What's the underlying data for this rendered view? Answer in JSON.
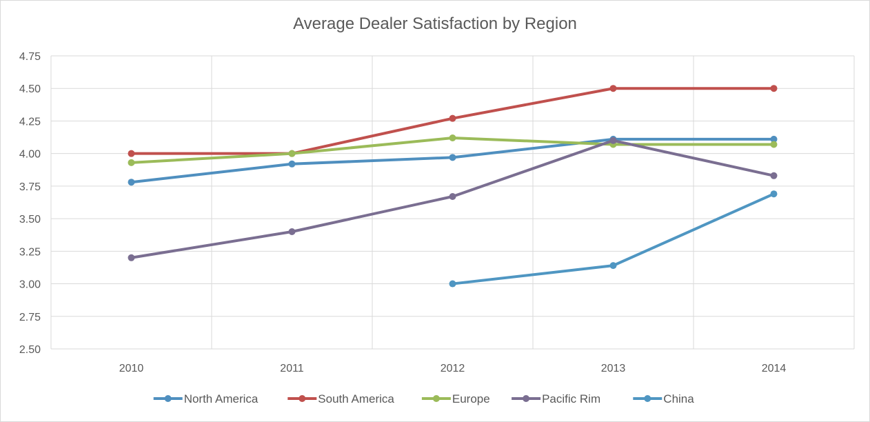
{
  "chart_data": {
    "type": "line",
    "title": "Average Dealer Satisfaction by Region",
    "xlabel": "",
    "ylabel": "",
    "x": [
      "2010",
      "2011",
      "2012",
      "2013",
      "2014"
    ],
    "ylim": [
      2.5,
      4.75
    ],
    "yticks": [
      "2.50",
      "2.75",
      "3.00",
      "3.25",
      "3.50",
      "3.75",
      "4.00",
      "4.25",
      "4.50",
      "4.75"
    ],
    "grid": true,
    "legend_position": "bottom",
    "series": [
      {
        "name": "North America",
        "color": "#4f8fbf",
        "values": [
          3.78,
          3.92,
          3.97,
          4.11,
          4.11
        ]
      },
      {
        "name": "South America",
        "color": "#c0504d",
        "values": [
          4.0,
          4.0,
          4.27,
          4.5,
          4.5
        ]
      },
      {
        "name": "Europe",
        "color": "#9bbb59",
        "values": [
          3.93,
          4.0,
          4.12,
          4.07,
          4.07
        ]
      },
      {
        "name": "Pacific Rim",
        "color": "#7a6e91",
        "values": [
          3.2,
          3.4,
          3.67,
          4.1,
          3.83
        ]
      },
      {
        "name": "China",
        "color": "#4f96c2",
        "values": [
          null,
          null,
          3.0,
          3.14,
          3.69
        ]
      }
    ]
  }
}
